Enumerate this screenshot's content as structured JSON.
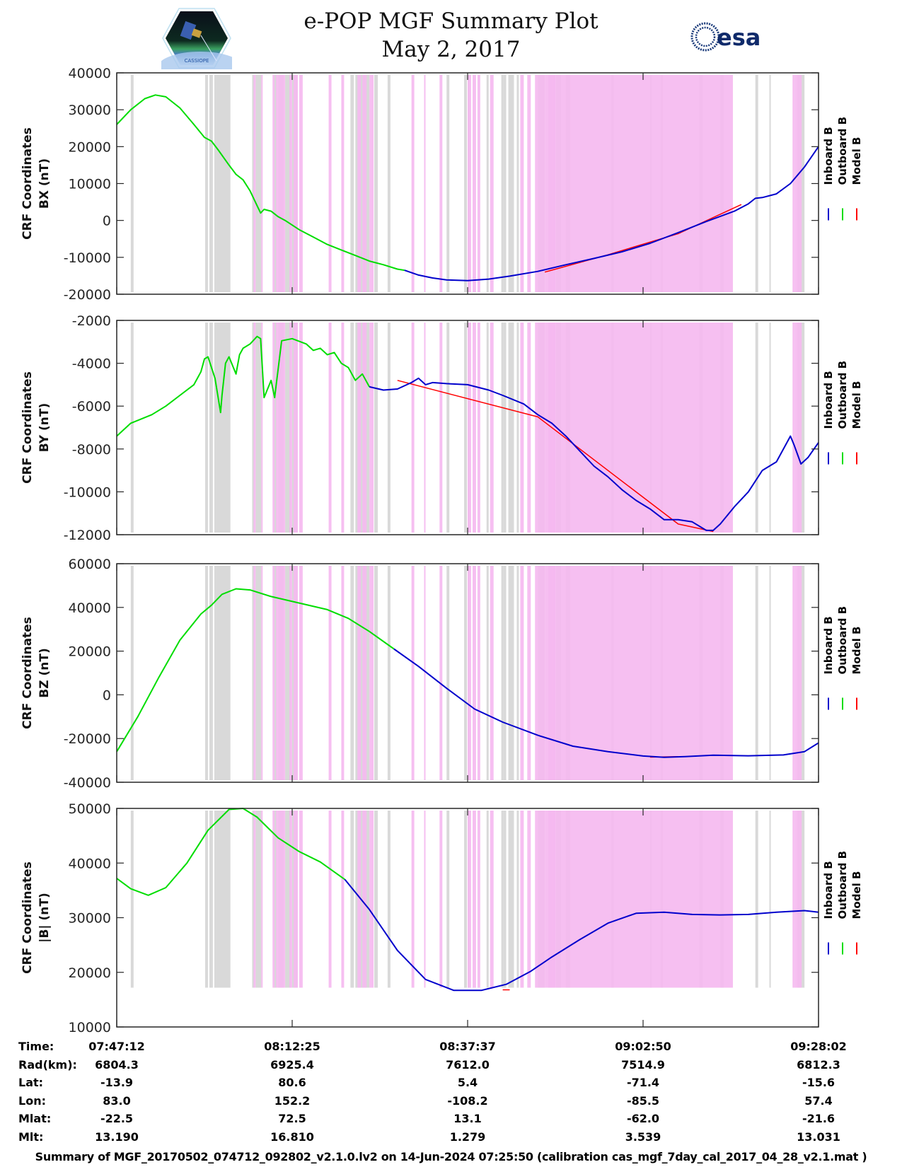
{
  "header": {
    "title_line1": "e-POP MGF Summary Plot",
    "title_line2": "May 2, 2017",
    "left_logo": "CASSIOPE",
    "right_logo": "esa"
  },
  "colors": {
    "inboard": "#0000cc",
    "outboard": "#00dd00",
    "model": "#ff0000",
    "band_gray": "#d9d9d9",
    "band_pink": "#f5b8f0"
  },
  "legend": [
    {
      "label": "Inboard B",
      "color": "#0000cc"
    },
    {
      "label": "Outboard B",
      "color": "#00dd00"
    },
    {
      "label": "Model B",
      "color": "#ff0000"
    }
  ],
  "chart_data": [
    {
      "type": "line",
      "ylabel_line1": "CRF Coordinates",
      "ylabel_line2": "BX (nT)",
      "ylim": [
        -20000,
        40000
      ],
      "yticks": [
        -20000,
        -10000,
        0,
        10000,
        20000,
        30000,
        40000
      ],
      "xlim": [
        0,
        1
      ],
      "switch_x": 0.41,
      "series": [
        {
          "name": "Outboard B",
          "x": [
            0,
            0.02,
            0.04,
            0.055,
            0.07,
            0.09,
            0.11,
            0.125,
            0.135,
            0.145,
            0.16,
            0.17,
            0.18,
            0.19,
            0.2,
            0.205,
            0.21,
            0.22,
            0.23,
            0.24,
            0.26,
            0.28,
            0.3,
            0.32,
            0.34,
            0.36,
            0.38,
            0.4,
            0.41
          ],
          "y": [
            26000,
            30000,
            33000,
            34000,
            33500,
            30500,
            26000,
            22500,
            21500,
            19000,
            15000,
            12500,
            11000,
            8000,
            4000,
            2000,
            3000,
            2500,
            1000,
            0,
            -2500,
            -4500,
            -6500,
            -8000,
            -9500,
            -11000,
            -12000,
            -13200,
            -13500
          ]
        },
        {
          "name": "Inboard B",
          "x": [
            0.41,
            0.43,
            0.45,
            0.47,
            0.5,
            0.53,
            0.56,
            0.6,
            0.64,
            0.68,
            0.72,
            0.76,
            0.8,
            0.84,
            0.88,
            0.9,
            0.91,
            0.92,
            0.94,
            0.96,
            0.98,
            1.0
          ],
          "y": [
            -13500,
            -14800,
            -15600,
            -16100,
            -16300,
            -15900,
            -15100,
            -13800,
            -12000,
            -10300,
            -8500,
            -6200,
            -3300,
            -300,
            2500,
            4500,
            6000,
            6200,
            7200,
            10000,
            14500,
            20000
          ]
        },
        {
          "name": "Model B",
          "x": [
            0.61,
            0.7,
            0.8,
            0.89
          ],
          "y": [
            -14000,
            -9300,
            -3600,
            4300
          ]
        }
      ],
      "bands_gray": [
        [
          0.02,
          0.024
        ],
        [
          0.126,
          0.13
        ],
        [
          0.132,
          0.137
        ],
        [
          0.139,
          0.162
        ],
        [
          0.193,
          0.196
        ],
        [
          0.198,
          0.206
        ],
        [
          0.224,
          0.228
        ],
        [
          0.23,
          0.238
        ],
        [
          0.24,
          0.248
        ],
        [
          0.25,
          0.258
        ],
        [
          0.333,
          0.338
        ],
        [
          0.34,
          0.36
        ],
        [
          0.367,
          0.372
        ],
        [
          0.386,
          0.39
        ],
        [
          0.47,
          0.474
        ],
        [
          0.495,
          0.499
        ],
        [
          0.5,
          0.503
        ],
        [
          0.527,
          0.53
        ],
        [
          0.548,
          0.551
        ],
        [
          0.551,
          0.555
        ],
        [
          0.558,
          0.566
        ],
        [
          0.57,
          0.573
        ],
        [
          0.626,
          0.633
        ],
        [
          0.6,
          0.61
        ],
        [
          0.64,
          0.646
        ],
        [
          0.705,
          0.708
        ],
        [
          0.76,
          0.762
        ],
        [
          0.775,
          0.778
        ],
        [
          0.83,
          0.835
        ],
        [
          0.86,
          0.865
        ],
        [
          0.91,
          0.914
        ],
        [
          0.93,
          0.932
        ],
        [
          0.97,
          0.98
        ]
      ],
      "bands_pink": [
        [
          0.195,
          0.198
        ],
        [
          0.206,
          0.208
        ],
        [
          0.222,
          0.225
        ],
        [
          0.227,
          0.23
        ],
        [
          0.23,
          0.24
        ],
        [
          0.246,
          0.25
        ],
        [
          0.252,
          0.258
        ],
        [
          0.26,
          0.265
        ],
        [
          0.302,
          0.306
        ],
        [
          0.32,
          0.324
        ],
        [
          0.343,
          0.348
        ],
        [
          0.35,
          0.356
        ],
        [
          0.36,
          0.366
        ],
        [
          0.42,
          0.424
        ],
        [
          0.438,
          0.44
        ],
        [
          0.46,
          0.464
        ],
        [
          0.5,
          0.505
        ],
        [
          0.507,
          0.512
        ],
        [
          0.514,
          0.518
        ],
        [
          0.532,
          0.537
        ],
        [
          0.575,
          0.58
        ],
        [
          0.585,
          0.59
        ],
        [
          0.596,
          0.6
        ],
        [
          0.61,
          0.62
        ],
        [
          0.62,
          0.625
        ],
        [
          0.6,
          0.61
        ],
        [
          0.615,
          0.878
        ],
        [
          0.963,
          0.966
        ],
        [
          0.966,
          0.976
        ]
      ]
    },
    {
      "type": "line",
      "ylabel_line1": "CRF Coordinates",
      "ylabel_line2": "BY (nT)",
      "ylim": [
        -12000,
        -2000
      ],
      "yticks": [
        -12000,
        -10000,
        -8000,
        -6000,
        -4000,
        -2000
      ],
      "xlim": [
        0,
        1
      ],
      "switch_x": 0.36,
      "series": [
        {
          "name": "Outboard B",
          "x": [
            0,
            0.02,
            0.05,
            0.07,
            0.09,
            0.11,
            0.12,
            0.125,
            0.13,
            0.14,
            0.148,
            0.15,
            0.155,
            0.16,
            0.17,
            0.175,
            0.18,
            0.19,
            0.2,
            0.205,
            0.21,
            0.22,
            0.225,
            0.235,
            0.25,
            0.27,
            0.28,
            0.29,
            0.3,
            0.31,
            0.32,
            0.33,
            0.34,
            0.35,
            0.36
          ],
          "y": [
            -7400,
            -6800,
            -6400,
            -6000,
            -5500,
            -5000,
            -4400,
            -3800,
            -3700,
            -4700,
            -6300,
            -5500,
            -4000,
            -3700,
            -4500,
            -3600,
            -3300,
            -3100,
            -2750,
            -2850,
            -5600,
            -4800,
            -5600,
            -2950,
            -2850,
            -3100,
            -3400,
            -3300,
            -3600,
            -3500,
            -4000,
            -4200,
            -4800,
            -4500,
            -5100
          ]
        },
        {
          "name": "Inboard B",
          "x": [
            0.36,
            0.38,
            0.4,
            0.42,
            0.43,
            0.44,
            0.45,
            0.47,
            0.5,
            0.53,
            0.55,
            0.58,
            0.6,
            0.62,
            0.64,
            0.66,
            0.68,
            0.7,
            0.72,
            0.74,
            0.76,
            0.78,
            0.8,
            0.82,
            0.84,
            0.85,
            0.86,
            0.88,
            0.9,
            0.92,
            0.94,
            0.96,
            0.965,
            0.975,
            0.985,
            1.0
          ],
          "y": [
            -5100,
            -5250,
            -5200,
            -4900,
            -4700,
            -5000,
            -4900,
            -4950,
            -5000,
            -5250,
            -5500,
            -5900,
            -6400,
            -6800,
            -7400,
            -8100,
            -8800,
            -9300,
            -9900,
            -10400,
            -10800,
            -11300,
            -11300,
            -11400,
            -11800,
            -11800,
            -11500,
            -10700,
            -10000,
            -9000,
            -8600,
            -7400,
            -7800,
            -8700,
            -8400,
            -7700
          ]
        },
        {
          "name": "Model B",
          "x": [
            0.4,
            0.6,
            0.8,
            0.85
          ],
          "y": [
            -4800,
            -6500,
            -11500,
            -11850
          ]
        }
      ]
    },
    {
      "type": "line",
      "ylabel_line1": "CRF Coordinates",
      "ylabel_line2": "BZ (nT)",
      "ylim": [
        -40000,
        60000
      ],
      "yticks": [
        -40000,
        -20000,
        0,
        20000,
        40000,
        60000
      ],
      "xlim": [
        0,
        1
      ],
      "switch_x": 0.395,
      "series": [
        {
          "name": "Outboard B",
          "x": [
            0,
            0.03,
            0.06,
            0.09,
            0.12,
            0.135,
            0.15,
            0.17,
            0.19,
            0.22,
            0.26,
            0.3,
            0.33,
            0.36,
            0.395
          ],
          "y": [
            -26000,
            -10000,
            8000,
            25000,
            37000,
            41000,
            46000,
            48500,
            48000,
            45000,
            42000,
            39000,
            35000,
            29000,
            21000
          ]
        },
        {
          "name": "Inboard B",
          "x": [
            0.395,
            0.43,
            0.47,
            0.51,
            0.55,
            0.6,
            0.65,
            0.7,
            0.75,
            0.78,
            0.81,
            0.85,
            0.9,
            0.95,
            0.98,
            1.0
          ],
          "y": [
            21000,
            13000,
            3000,
            -6500,
            -12500,
            -18500,
            -23500,
            -26000,
            -28000,
            -28600,
            -28300,
            -27600,
            -27900,
            -27500,
            -26000,
            -22000
          ]
        },
        {
          "name": "Model B",
          "x": [
            0.76,
            0.8
          ],
          "y": [
            -28500,
            -28300
          ]
        }
      ]
    },
    {
      "type": "line",
      "ylabel_line1": "CRF Coordinates",
      "ylabel_line2": "|B| (nT)",
      "ylim": [
        10000,
        50000
      ],
      "yticks": [
        10000,
        20000,
        30000,
        40000,
        50000
      ],
      "xlim": [
        0,
        1
      ],
      "switch_x": 0.325,
      "series": [
        {
          "name": "Outboard B",
          "x": [
            0,
            0.02,
            0.045,
            0.07,
            0.1,
            0.13,
            0.16,
            0.18,
            0.2,
            0.23,
            0.26,
            0.29,
            0.325
          ],
          "y": [
            37200,
            35300,
            34100,
            35500,
            40000,
            46000,
            49800,
            50000,
            48400,
            44600,
            42100,
            40200,
            37000
          ]
        },
        {
          "name": "Inboard B",
          "x": [
            0.325,
            0.36,
            0.4,
            0.44,
            0.48,
            0.52,
            0.555,
            0.59,
            0.62,
            0.66,
            0.7,
            0.74,
            0.78,
            0.82,
            0.86,
            0.9,
            0.94,
            0.98,
            1.0
          ],
          "y": [
            37000,
            31500,
            24000,
            18700,
            16700,
            16700,
            17800,
            20200,
            22800,
            26000,
            29000,
            30800,
            31000,
            30600,
            30500,
            30600,
            31000,
            31300,
            31000
          ]
        },
        {
          "name": "Model B",
          "x": [
            0.55,
            0.56
          ],
          "y": [
            16800,
            16800
          ]
        }
      ]
    }
  ],
  "time_axis": {
    "ticks": [
      "07:47:12",
      "08:12:25",
      "08:37:37",
      "09:02:50",
      "09:28:02"
    ]
  },
  "info_table": {
    "rows": [
      {
        "label": "Time:",
        "values": [
          "07:47:12",
          "08:12:25",
          "08:37:37",
          "09:02:50",
          "09:28:02"
        ]
      },
      {
        "label": "Rad(km):",
        "values": [
          "6804.3",
          "6925.4",
          "7612.0",
          "7514.9",
          "6812.3"
        ]
      },
      {
        "label": "Lat:",
        "values": [
          "-13.9",
          "80.6",
          "5.4",
          "-71.4",
          "-15.6"
        ]
      },
      {
        "label": "Lon:",
        "values": [
          "83.0",
          "152.2",
          "-108.2",
          "-85.5",
          "57.4"
        ]
      },
      {
        "label": "Mlat:",
        "values": [
          "-22.5",
          "72.5",
          "13.1",
          "-62.0",
          "-21.6"
        ]
      },
      {
        "label": "Mlt:",
        "values": [
          "13.190",
          "16.810",
          "1.279",
          "3.539",
          "13.031"
        ]
      }
    ]
  },
  "footer": "Summary of MGF_20170502_074712_092802_v2.1.0.lv2 on 14-Jun-2024 07:25:50 (calibration cas_mgf_7day_cal_2017_04_28_v2.1.mat )"
}
